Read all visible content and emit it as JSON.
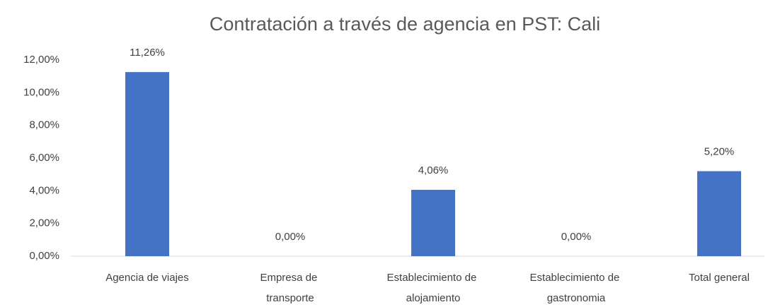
{
  "chart_data": {
    "type": "bar",
    "title": "Contratación a través de agencia en PST: Cali",
    "categories": [
      "Agencia de viajes",
      "Empresa de transporte",
      "Establecimiento de alojamiento",
      "Establecimiento de gastronomia",
      "Total general"
    ],
    "values": [
      11.26,
      0,
      4.06,
      0,
      5.2
    ],
    "value_labels": [
      "11,26%",
      "0,00%",
      "4,06%",
      "0,00%",
      "5,20%"
    ],
    "color": "#4472c4",
    "ylim": [
      0,
      12
    ],
    "yticks": [
      {
        "value": 0,
        "label": "0,00%"
      },
      {
        "value": 2,
        "label": "2,00%"
      },
      {
        "value": 4,
        "label": "4,00%"
      },
      {
        "value": 6,
        "label": "6,00%"
      },
      {
        "value": 8,
        "label": "8,00%"
      },
      {
        "value": 10,
        "label": "10,00%"
      },
      {
        "value": 12,
        "label": "12,00%"
      }
    ],
    "grid": false
  }
}
